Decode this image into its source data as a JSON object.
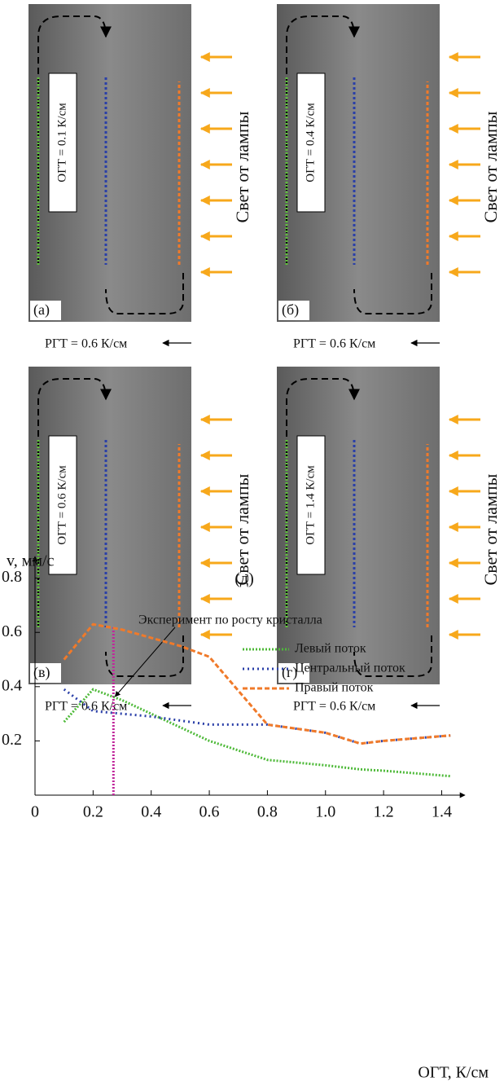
{
  "panels": [
    {
      "label": "(а)",
      "ogt": "ОГТ = 0.1 К/см",
      "light": "Свет от лампы",
      "rgt": "РГТ = 0.6 К/см"
    },
    {
      "label": "(б)",
      "ogt": "ОГТ = 0.4 К/см",
      "light": "Свет от лампы",
      "rgt": "РГТ = 0.6 К/см"
    },
    {
      "label": "(в)",
      "ogt": "ОГТ = 0.6 К/см",
      "light": "Свет от лампы",
      "rgt": "РГТ = 0.6 К/см"
    },
    {
      "label": "(г)",
      "ogt": "ОГТ = 1.4 К/см",
      "light": "Свет от лампы",
      "rgt": "РГТ = 0.6 К/см"
    }
  ],
  "chart_data": {
    "type": "line",
    "title": "(д)",
    "y_label": "v, мм/с",
    "x_label": "ОГТ, К/см",
    "x": [
      0.1,
      0.2,
      0.3,
      0.4,
      0.5,
      0.6,
      0.8,
      1.0,
      1.12,
      1.2,
      1.43
    ],
    "series": [
      {
        "name": "Левый поток",
        "color": "#4fba3a",
        "dash": "2 2",
        "values": [
          0.27,
          0.39,
          0.35,
          0.3,
          0.25,
          0.2,
          0.13,
          0.11,
          0.095,
          0.09,
          0.07
        ]
      },
      {
        "name": "Центральный поток",
        "color": "#2a3fa8",
        "dash": "2 4",
        "values": [
          0.39,
          0.31,
          0.3,
          0.29,
          0.275,
          0.26,
          0.26,
          0.23,
          0.19,
          0.2,
          0.22
        ]
      },
      {
        "name": "Правый поток",
        "color": "#f07a2a",
        "dash": "6 3",
        "values": [
          0.5,
          0.63,
          0.61,
          0.58,
          0.55,
          0.51,
          0.26,
          0.23,
          0.19,
          0.2,
          0.22
        ]
      }
    ],
    "annotation": {
      "text": "Эксперимент по росту кристалла",
      "x": 0.27,
      "y": 0.62,
      "color": "#c0279b"
    },
    "xlim": [
      0,
      1.48
    ],
    "ylim": [
      0,
      0.88
    ],
    "xticks": [
      0,
      0.2,
      0.4,
      0.6,
      0.8,
      {
        "value": 1,
        "label": "1.0"
      },
      1.2,
      1.4
    ],
    "yticks": [
      0.2,
      0.4,
      0.6,
      0.8
    ],
    "legend": "upper right",
    "grid": false
  }
}
